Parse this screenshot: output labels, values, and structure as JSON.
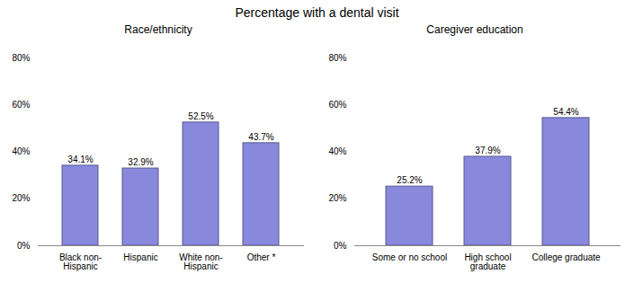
{
  "title": "Percentage with a dental visit",
  "chart_data": [
    {
      "type": "bar",
      "title": "Race/ethnicity",
      "categories": [
        "Black non-\nHispanic",
        "Hispanic",
        "White non-\nHispanic",
        "Other *"
      ],
      "values": [
        34.1,
        32.9,
        52.5,
        43.7
      ],
      "value_labels": [
        "34.1%",
        "32.9%",
        "52.5%",
        "43.7%"
      ],
      "data_labels": true,
      "color": "#8888dd",
      "ylim": [
        0,
        80
      ],
      "yticks": [
        {
          "value": 0,
          "label": "0%"
        },
        {
          "value": 20,
          "label": "20%"
        },
        {
          "value": 40,
          "label": "40%"
        },
        {
          "value": 60,
          "label": "60%"
        },
        {
          "value": 80,
          "label": "80%"
        }
      ]
    },
    {
      "type": "bar",
      "title": "Caregiver education",
      "categories": [
        "Some or no school",
        "High school\ngraduate",
        "College graduate"
      ],
      "values": [
        25.2,
        37.9,
        54.4
      ],
      "value_labels": [
        "25.2%",
        "37.9%",
        "54.4%"
      ],
      "data_labels": true,
      "color": "#8888dd",
      "ylim": [
        0,
        80
      ],
      "yticks": [
        {
          "value": 0,
          "label": "0%"
        },
        {
          "value": 20,
          "label": "20%"
        },
        {
          "value": 40,
          "label": "40%"
        },
        {
          "value": 60,
          "label": "60%"
        },
        {
          "value": 80,
          "label": "80%"
        }
      ]
    }
  ]
}
